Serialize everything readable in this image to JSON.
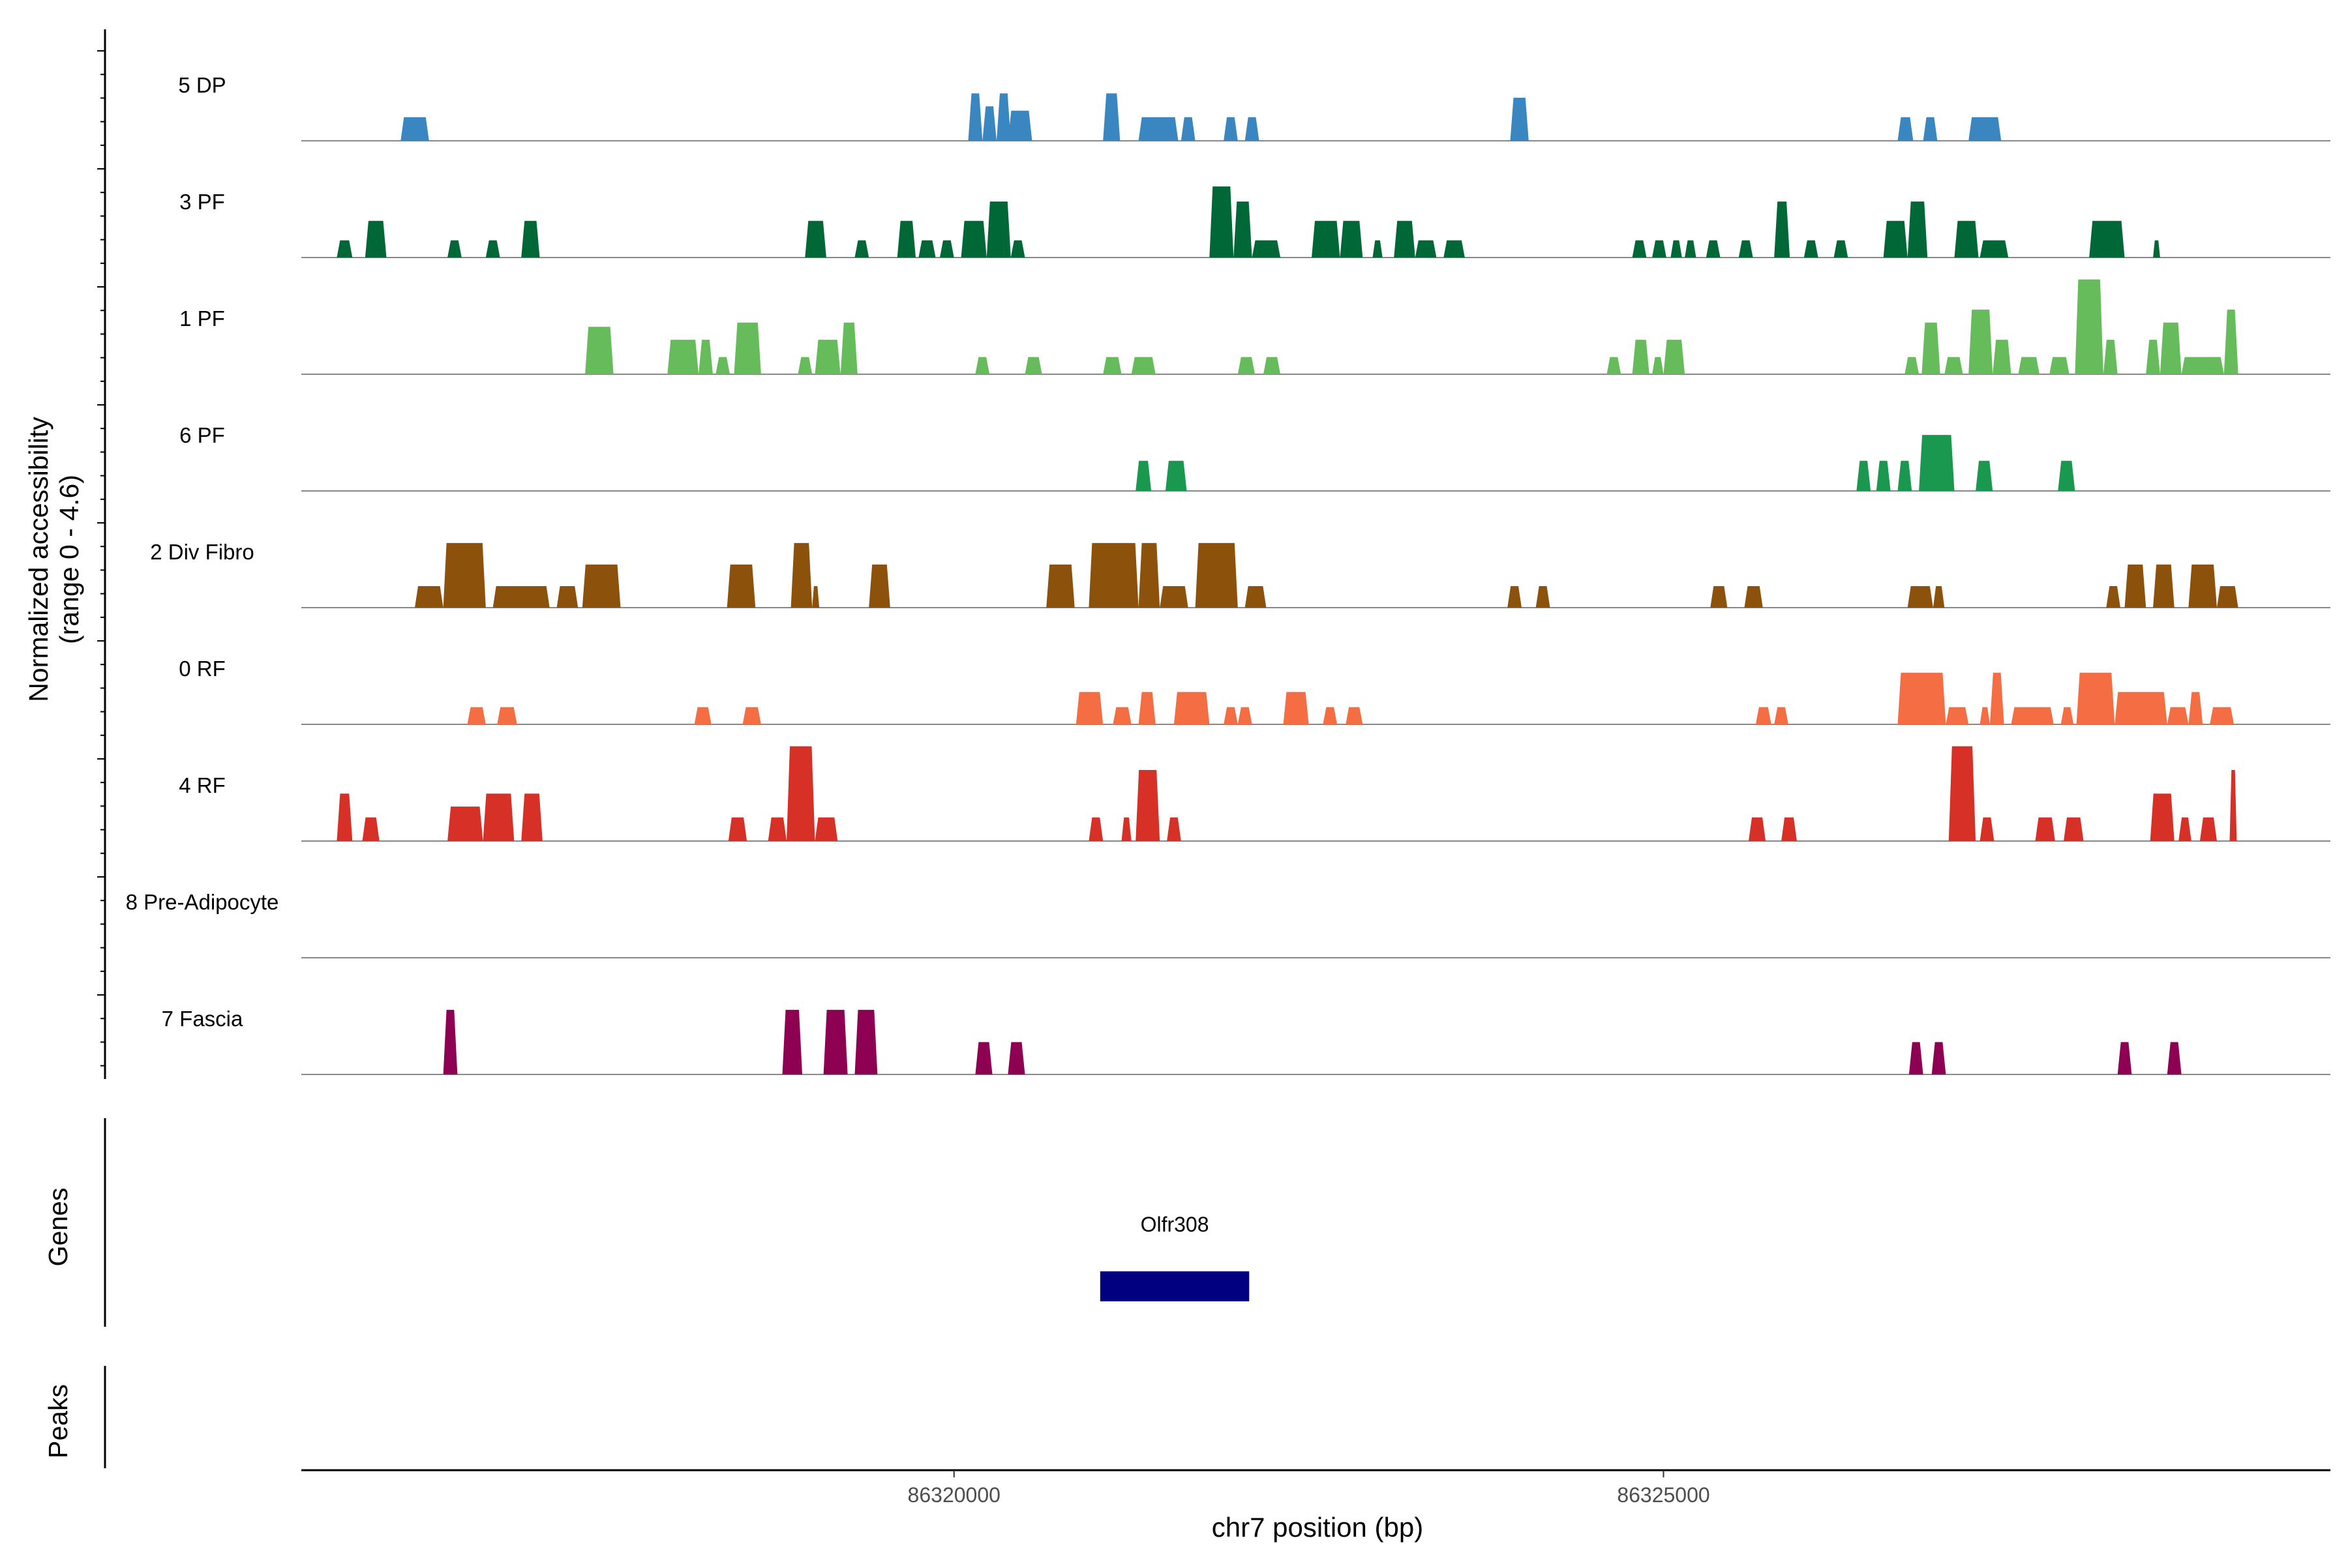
{
  "chart_data": {
    "type": "area",
    "title": "",
    "ylabel": "Normalized accessibility",
    "ylabel_range": "(range 0 - 4.6)",
    "ylim": [
      0,
      4.6
    ],
    "xlabel": "chr7 position (bp)",
    "xlim": [
      86315400,
      86329700
    ],
    "xticks": [
      {
        "value": 86320000,
        "label": "86320000"
      },
      {
        "value": 86325000,
        "label": "86325000"
      }
    ],
    "tracks_label_genes": "Genes",
    "tracks_label_peaks": "Peaks",
    "genes": [
      {
        "name": "Olfr308",
        "start": 86321030,
        "end": 86322080,
        "color": "#000080"
      }
    ],
    "peaks": [],
    "series": [
      {
        "name": "5 DP",
        "color": "#3A86C1",
        "peaks": [
          [
            86316100,
            86316300,
            1.1
          ],
          [
            86320100,
            86320200,
            2.2
          ],
          [
            86320200,
            86320300,
            1.6
          ],
          [
            86320300,
            86320400,
            2.2
          ],
          [
            86320380,
            86320550,
            1.4
          ],
          [
            86321050,
            86321170,
            2.2
          ],
          [
            86321300,
            86321580,
            1.1
          ],
          [
            86321600,
            86321700,
            1.1
          ],
          [
            86321900,
            86322000,
            1.1
          ],
          [
            86322050,
            86322150,
            1.1
          ],
          [
            86323920,
            86324050,
            2.0
          ],
          [
            86326650,
            86326760,
            1.1
          ],
          [
            86326830,
            86326930,
            1.1
          ],
          [
            86327150,
            86327380,
            1.1
          ]
        ]
      },
      {
        "name": "3 PF",
        "color": "#006837",
        "peaks": [
          [
            86315650,
            86315760,
            0.8
          ],
          [
            86315850,
            86316000,
            1.7
          ],
          [
            86316430,
            86316530,
            0.8
          ],
          [
            86316700,
            86316800,
            0.8
          ],
          [
            86316950,
            86317080,
            1.7
          ],
          [
            86318950,
            86319100,
            1.7
          ],
          [
            86319300,
            86319400,
            0.8
          ],
          [
            86319600,
            86319730,
            1.7
          ],
          [
            86319750,
            86319870,
            0.8
          ],
          [
            86319900,
            86320000,
            0.8
          ],
          [
            86320050,
            86320230,
            1.7
          ],
          [
            86320230,
            86320400,
            2.6
          ],
          [
            86320400,
            86320500,
            0.8
          ],
          [
            86321800,
            86321970,
            3.3
          ],
          [
            86321970,
            86322100,
            2.6
          ],
          [
            86322100,
            86322300,
            0.8
          ],
          [
            86322520,
            86322720,
            1.7
          ],
          [
            86322720,
            86322880,
            1.7
          ],
          [
            86322950,
            86323020,
            0.8
          ],
          [
            86323100,
            86323250,
            1.7
          ],
          [
            86323250,
            86323400,
            0.8
          ],
          [
            86323450,
            86323600,
            0.8
          ],
          [
            86324780,
            86324880,
            0.8
          ],
          [
            86324920,
            86325020,
            0.8
          ],
          [
            86325050,
            86325130,
            0.8
          ],
          [
            86325150,
            86325230,
            0.8
          ],
          [
            86325300,
            86325400,
            0.8
          ],
          [
            86325530,
            86325630,
            0.8
          ],
          [
            86325780,
            86325890,
            2.6
          ],
          [
            86325990,
            86326090,
            0.8
          ],
          [
            86326200,
            86326300,
            0.8
          ],
          [
            86326550,
            86326720,
            1.7
          ],
          [
            86326720,
            86326860,
            2.6
          ],
          [
            86327050,
            86327220,
            1.7
          ],
          [
            86327230,
            86327430,
            0.8
          ],
          [
            86328000,
            86328250,
            1.7
          ],
          [
            86328450,
            86328500,
            0.8
          ]
        ]
      },
      {
        "name": "1 PF",
        "color": "#66BB5A",
        "peaks": [
          [
            86317400,
            86317600,
            2.2
          ],
          [
            86317980,
            86318200,
            1.6
          ],
          [
            86318200,
            86318300,
            1.6
          ],
          [
            86318320,
            86318420,
            0.8
          ],
          [
            86318450,
            86318640,
            2.4
          ],
          [
            86318900,
            86319000,
            0.8
          ],
          [
            86319020,
            86319200,
            1.6
          ],
          [
            86319200,
            86319320,
            2.4
          ],
          [
            86320150,
            86320250,
            0.8
          ],
          [
            86320500,
            86320620,
            0.8
          ],
          [
            86321050,
            86321180,
            0.8
          ],
          [
            86321250,
            86321420,
            0.8
          ],
          [
            86322000,
            86322120,
            0.8
          ],
          [
            86322180,
            86322300,
            0.8
          ],
          [
            86324600,
            86324700,
            0.8
          ],
          [
            86324780,
            86324900,
            1.6
          ],
          [
            86324920,
            86325000,
            0.8
          ],
          [
            86325000,
            86325150,
            1.6
          ],
          [
            86326700,
            86326800,
            0.8
          ],
          [
            86326820,
            86326950,
            2.4
          ],
          [
            86326980,
            86327110,
            0.8
          ],
          [
            86327150,
            86327320,
            3.0
          ],
          [
            86327320,
            86327450,
            1.6
          ],
          [
            86327500,
            86327650,
            0.8
          ],
          [
            86327720,
            86327860,
            0.8
          ],
          [
            86327900,
            86328100,
            4.4
          ],
          [
            86328100,
            86328200,
            1.6
          ],
          [
            86328400,
            86328500,
            1.6
          ],
          [
            86328500,
            86328650,
            2.4
          ],
          [
            86328650,
            86328950,
            0.8
          ],
          [
            86328950,
            86329050,
            3.0
          ]
        ]
      },
      {
        "name": "6 PF",
        "color": "#1A9850",
        "peaks": [
          [
            86321280,
            86321390,
            1.4
          ],
          [
            86321490,
            86321640,
            1.4
          ],
          [
            86326360,
            86326460,
            1.4
          ],
          [
            86326500,
            86326600,
            1.4
          ],
          [
            86326650,
            86326750,
            1.4
          ],
          [
            86326800,
            86327050,
            2.6
          ],
          [
            86327200,
            86327320,
            1.4
          ],
          [
            86327780,
            86327900,
            1.4
          ]
        ]
      },
      {
        "name": "2 Div Fibro",
        "color": "#8C510A",
        "peaks": [
          [
            86316200,
            86316400,
            1.0
          ],
          [
            86316400,
            86316700,
            3.0
          ],
          [
            86316750,
            86317150,
            1.0
          ],
          [
            86317200,
            86317350,
            1.0
          ],
          [
            86317380,
            86317650,
            2.0
          ],
          [
            86318400,
            86318600,
            2.0
          ],
          [
            86318850,
            86319000,
            3.0
          ],
          [
            86319000,
            86319050,
            1.0
          ],
          [
            86319400,
            86319550,
            2.0
          ],
          [
            86320650,
            86320850,
            2.0
          ],
          [
            86320950,
            86321300,
            3.0
          ],
          [
            86321300,
            86321450,
            3.0
          ],
          [
            86321450,
            86321650,
            1.0
          ],
          [
            86321700,
            86322000,
            3.0
          ],
          [
            86322050,
            86322200,
            1.0
          ],
          [
            86323900,
            86324000,
            1.0
          ],
          [
            86324100,
            86324200,
            1.0
          ],
          [
            86325330,
            86325450,
            1.0
          ],
          [
            86325570,
            86325700,
            1.0
          ],
          [
            86326720,
            86326900,
            1.0
          ],
          [
            86326900,
            86326980,
            1.0
          ],
          [
            86328120,
            86328220,
            1.0
          ],
          [
            86328250,
            86328400,
            2.0
          ],
          [
            86328450,
            86328600,
            2.0
          ],
          [
            86328700,
            86328900,
            2.0
          ],
          [
            86328900,
            86329050,
            1.0
          ]
        ]
      },
      {
        "name": "0 RF",
        "color": "#F46D43",
        "peaks": [
          [
            86316570,
            86316700,
            0.8
          ],
          [
            86316780,
            86316920,
            0.8
          ],
          [
            86318170,
            86318290,
            0.8
          ],
          [
            86318510,
            86318640,
            0.8
          ],
          [
            86320860,
            86321050,
            1.5
          ],
          [
            86321120,
            86321250,
            0.8
          ],
          [
            86321300,
            86321420,
            1.5
          ],
          [
            86321550,
            86321800,
            1.5
          ],
          [
            86321900,
            86322000,
            0.8
          ],
          [
            86322000,
            86322100,
            0.8
          ],
          [
            86322320,
            86322500,
            1.5
          ],
          [
            86322600,
            86322700,
            0.8
          ],
          [
            86322760,
            86322880,
            0.8
          ],
          [
            86325650,
            86325760,
            0.8
          ],
          [
            86325780,
            86325880,
            0.8
          ],
          [
            86326650,
            86326990,
            2.4
          ],
          [
            86326990,
            86327150,
            0.8
          ],
          [
            86327230,
            86327300,
            0.8
          ],
          [
            86327300,
            86327400,
            2.4
          ],
          [
            86327450,
            86327750,
            0.8
          ],
          [
            86327800,
            86327890,
            0.8
          ],
          [
            86327910,
            86328180,
            2.4
          ],
          [
            86328180,
            86328550,
            1.5
          ],
          [
            86328550,
            86328700,
            0.8
          ],
          [
            86328700,
            86328800,
            1.5
          ],
          [
            86328850,
            86329020,
            0.8
          ]
        ]
      },
      {
        "name": "4 RF",
        "color": "#D73027",
        "peaks": [
          [
            86315650,
            86315760,
            2.2
          ],
          [
            86315830,
            86315950,
            1.1
          ],
          [
            86316430,
            86316680,
            1.6
          ],
          [
            86316680,
            86316900,
            2.2
          ],
          [
            86316950,
            86317100,
            2.2
          ],
          [
            86318410,
            86318540,
            1.1
          ],
          [
            86318690,
            86318820,
            1.1
          ],
          [
            86318820,
            86319020,
            4.4
          ],
          [
            86319020,
            86319180,
            1.1
          ],
          [
            86320950,
            86321050,
            1.1
          ],
          [
            86321180,
            86321250,
            1.1
          ],
          [
            86321280,
            86321450,
            3.3
          ],
          [
            86321500,
            86321600,
            1.1
          ],
          [
            86325600,
            86325720,
            1.1
          ],
          [
            86325830,
            86325940,
            1.1
          ],
          [
            86327010,
            86327200,
            4.4
          ],
          [
            86327230,
            86327330,
            1.1
          ],
          [
            86327620,
            86327760,
            1.1
          ],
          [
            86327820,
            86327960,
            1.1
          ],
          [
            86328430,
            86328600,
            2.2
          ],
          [
            86328630,
            86328720,
            1.1
          ],
          [
            86328780,
            86328900,
            1.1
          ],
          [
            86328990,
            86329040,
            3.3
          ]
        ]
      },
      {
        "name": "8 Pre-Adipocyte",
        "color": "#4D4D4D",
        "peaks": []
      },
      {
        "name": "7 Fascia",
        "color": "#8E0152",
        "peaks": [
          [
            86316400,
            86316500,
            3.0
          ],
          [
            86318790,
            86318930,
            3.0
          ],
          [
            86319080,
            86319250,
            3.0
          ],
          [
            86319300,
            86319460,
            3.0
          ],
          [
            86320150,
            86320270,
            1.5
          ],
          [
            86320380,
            86320500,
            1.5
          ],
          [
            86326730,
            86326830,
            1.5
          ],
          [
            86326890,
            86326990,
            1.5
          ],
          [
            86328200,
            86328300,
            1.5
          ],
          [
            86328550,
            86328650,
            1.5
          ]
        ]
      }
    ]
  }
}
